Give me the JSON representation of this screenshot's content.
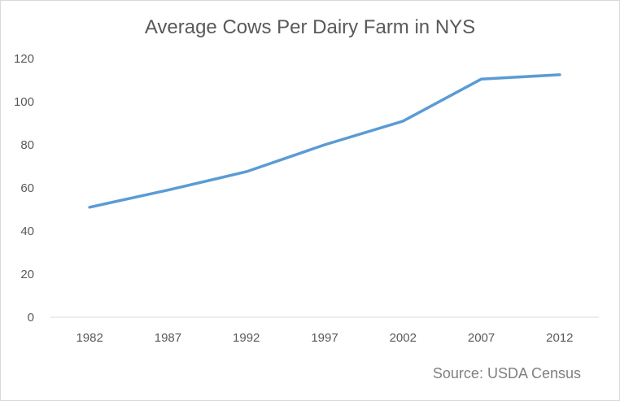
{
  "chart_data": {
    "type": "line",
    "title": "Average Cows Per Dairy Farm in NYS",
    "source": "Source: USDA Census",
    "categories": [
      "1982",
      "1987",
      "1992",
      "1997",
      "2002",
      "2007",
      "2012"
    ],
    "series": [
      {
        "values": [
          51,
          59,
          67.5,
          80,
          91,
          110.5,
          112.5
        ],
        "color": "#5b9bd5"
      }
    ],
    "y_ticks": [
      "0",
      "20",
      "40",
      "60",
      "80",
      "100",
      "120"
    ],
    "ylim": [
      0,
      120
    ],
    "xlabel": "",
    "ylabel": "",
    "grid": false,
    "legend": "none"
  }
}
